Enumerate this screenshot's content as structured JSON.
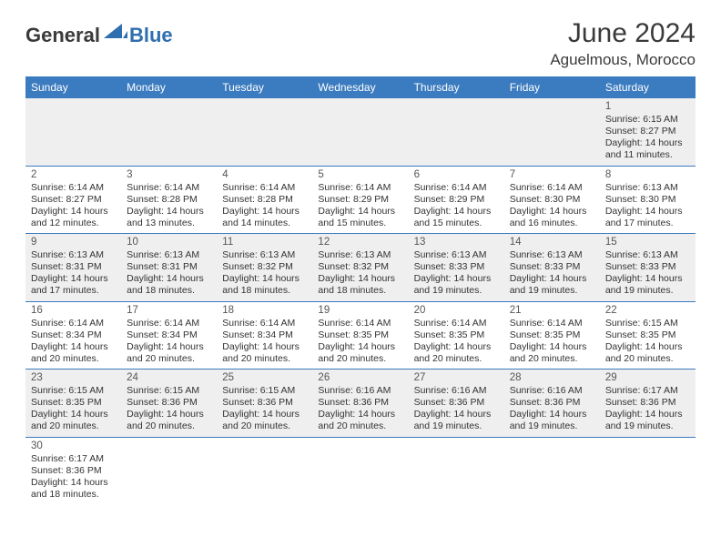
{
  "logo": {
    "general": "General",
    "blue": "Blue"
  },
  "title": "June 2024",
  "location": "Aguelmous, Morocco",
  "colors": {
    "header_bg": "#3b7bbf",
    "header_text": "#ffffff",
    "row_alt_bg": "#efefef",
    "border": "#3b7bbf",
    "text": "#333333",
    "title_color": "#3a3a3a",
    "logo_blue": "#2f6fb0"
  },
  "weekdays": [
    "Sunday",
    "Monday",
    "Tuesday",
    "Wednesday",
    "Thursday",
    "Friday",
    "Saturday"
  ],
  "weeks": [
    {
      "alt": true,
      "days": [
        null,
        null,
        null,
        null,
        null,
        null,
        {
          "n": "1",
          "sunrise": "Sunrise: 6:15 AM",
          "sunset": "Sunset: 8:27 PM",
          "daylight1": "Daylight: 14 hours",
          "daylight2": "and 11 minutes."
        }
      ]
    },
    {
      "alt": false,
      "days": [
        {
          "n": "2",
          "sunrise": "Sunrise: 6:14 AM",
          "sunset": "Sunset: 8:27 PM",
          "daylight1": "Daylight: 14 hours",
          "daylight2": "and 12 minutes."
        },
        {
          "n": "3",
          "sunrise": "Sunrise: 6:14 AM",
          "sunset": "Sunset: 8:28 PM",
          "daylight1": "Daylight: 14 hours",
          "daylight2": "and 13 minutes."
        },
        {
          "n": "4",
          "sunrise": "Sunrise: 6:14 AM",
          "sunset": "Sunset: 8:28 PM",
          "daylight1": "Daylight: 14 hours",
          "daylight2": "and 14 minutes."
        },
        {
          "n": "5",
          "sunrise": "Sunrise: 6:14 AM",
          "sunset": "Sunset: 8:29 PM",
          "daylight1": "Daylight: 14 hours",
          "daylight2": "and 15 minutes."
        },
        {
          "n": "6",
          "sunrise": "Sunrise: 6:14 AM",
          "sunset": "Sunset: 8:29 PM",
          "daylight1": "Daylight: 14 hours",
          "daylight2": "and 15 minutes."
        },
        {
          "n": "7",
          "sunrise": "Sunrise: 6:14 AM",
          "sunset": "Sunset: 8:30 PM",
          "daylight1": "Daylight: 14 hours",
          "daylight2": "and 16 minutes."
        },
        {
          "n": "8",
          "sunrise": "Sunrise: 6:13 AM",
          "sunset": "Sunset: 8:30 PM",
          "daylight1": "Daylight: 14 hours",
          "daylight2": "and 17 minutes."
        }
      ]
    },
    {
      "alt": true,
      "days": [
        {
          "n": "9",
          "sunrise": "Sunrise: 6:13 AM",
          "sunset": "Sunset: 8:31 PM",
          "daylight1": "Daylight: 14 hours",
          "daylight2": "and 17 minutes."
        },
        {
          "n": "10",
          "sunrise": "Sunrise: 6:13 AM",
          "sunset": "Sunset: 8:31 PM",
          "daylight1": "Daylight: 14 hours",
          "daylight2": "and 18 minutes."
        },
        {
          "n": "11",
          "sunrise": "Sunrise: 6:13 AM",
          "sunset": "Sunset: 8:32 PM",
          "daylight1": "Daylight: 14 hours",
          "daylight2": "and 18 minutes."
        },
        {
          "n": "12",
          "sunrise": "Sunrise: 6:13 AM",
          "sunset": "Sunset: 8:32 PM",
          "daylight1": "Daylight: 14 hours",
          "daylight2": "and 18 minutes."
        },
        {
          "n": "13",
          "sunrise": "Sunrise: 6:13 AM",
          "sunset": "Sunset: 8:33 PM",
          "daylight1": "Daylight: 14 hours",
          "daylight2": "and 19 minutes."
        },
        {
          "n": "14",
          "sunrise": "Sunrise: 6:13 AM",
          "sunset": "Sunset: 8:33 PM",
          "daylight1": "Daylight: 14 hours",
          "daylight2": "and 19 minutes."
        },
        {
          "n": "15",
          "sunrise": "Sunrise: 6:13 AM",
          "sunset": "Sunset: 8:33 PM",
          "daylight1": "Daylight: 14 hours",
          "daylight2": "and 19 minutes."
        }
      ]
    },
    {
      "alt": false,
      "days": [
        {
          "n": "16",
          "sunrise": "Sunrise: 6:14 AM",
          "sunset": "Sunset: 8:34 PM",
          "daylight1": "Daylight: 14 hours",
          "daylight2": "and 20 minutes."
        },
        {
          "n": "17",
          "sunrise": "Sunrise: 6:14 AM",
          "sunset": "Sunset: 8:34 PM",
          "daylight1": "Daylight: 14 hours",
          "daylight2": "and 20 minutes."
        },
        {
          "n": "18",
          "sunrise": "Sunrise: 6:14 AM",
          "sunset": "Sunset: 8:34 PM",
          "daylight1": "Daylight: 14 hours",
          "daylight2": "and 20 minutes."
        },
        {
          "n": "19",
          "sunrise": "Sunrise: 6:14 AM",
          "sunset": "Sunset: 8:35 PM",
          "daylight1": "Daylight: 14 hours",
          "daylight2": "and 20 minutes."
        },
        {
          "n": "20",
          "sunrise": "Sunrise: 6:14 AM",
          "sunset": "Sunset: 8:35 PM",
          "daylight1": "Daylight: 14 hours",
          "daylight2": "and 20 minutes."
        },
        {
          "n": "21",
          "sunrise": "Sunrise: 6:14 AM",
          "sunset": "Sunset: 8:35 PM",
          "daylight1": "Daylight: 14 hours",
          "daylight2": "and 20 minutes."
        },
        {
          "n": "22",
          "sunrise": "Sunrise: 6:15 AM",
          "sunset": "Sunset: 8:35 PM",
          "daylight1": "Daylight: 14 hours",
          "daylight2": "and 20 minutes."
        }
      ]
    },
    {
      "alt": true,
      "days": [
        {
          "n": "23",
          "sunrise": "Sunrise: 6:15 AM",
          "sunset": "Sunset: 8:35 PM",
          "daylight1": "Daylight: 14 hours",
          "daylight2": "and 20 minutes."
        },
        {
          "n": "24",
          "sunrise": "Sunrise: 6:15 AM",
          "sunset": "Sunset: 8:36 PM",
          "daylight1": "Daylight: 14 hours",
          "daylight2": "and 20 minutes."
        },
        {
          "n": "25",
          "sunrise": "Sunrise: 6:15 AM",
          "sunset": "Sunset: 8:36 PM",
          "daylight1": "Daylight: 14 hours",
          "daylight2": "and 20 minutes."
        },
        {
          "n": "26",
          "sunrise": "Sunrise: 6:16 AM",
          "sunset": "Sunset: 8:36 PM",
          "daylight1": "Daylight: 14 hours",
          "daylight2": "and 20 minutes."
        },
        {
          "n": "27",
          "sunrise": "Sunrise: 6:16 AM",
          "sunset": "Sunset: 8:36 PM",
          "daylight1": "Daylight: 14 hours",
          "daylight2": "and 19 minutes."
        },
        {
          "n": "28",
          "sunrise": "Sunrise: 6:16 AM",
          "sunset": "Sunset: 8:36 PM",
          "daylight1": "Daylight: 14 hours",
          "daylight2": "and 19 minutes."
        },
        {
          "n": "29",
          "sunrise": "Sunrise: 6:17 AM",
          "sunset": "Sunset: 8:36 PM",
          "daylight1": "Daylight: 14 hours",
          "daylight2": "and 19 minutes."
        }
      ]
    },
    {
      "alt": false,
      "last": true,
      "days": [
        {
          "n": "30",
          "sunrise": "Sunrise: 6:17 AM",
          "sunset": "Sunset: 8:36 PM",
          "daylight1": "Daylight: 14 hours",
          "daylight2": "and 18 minutes."
        },
        null,
        null,
        null,
        null,
        null,
        null
      ]
    }
  ]
}
